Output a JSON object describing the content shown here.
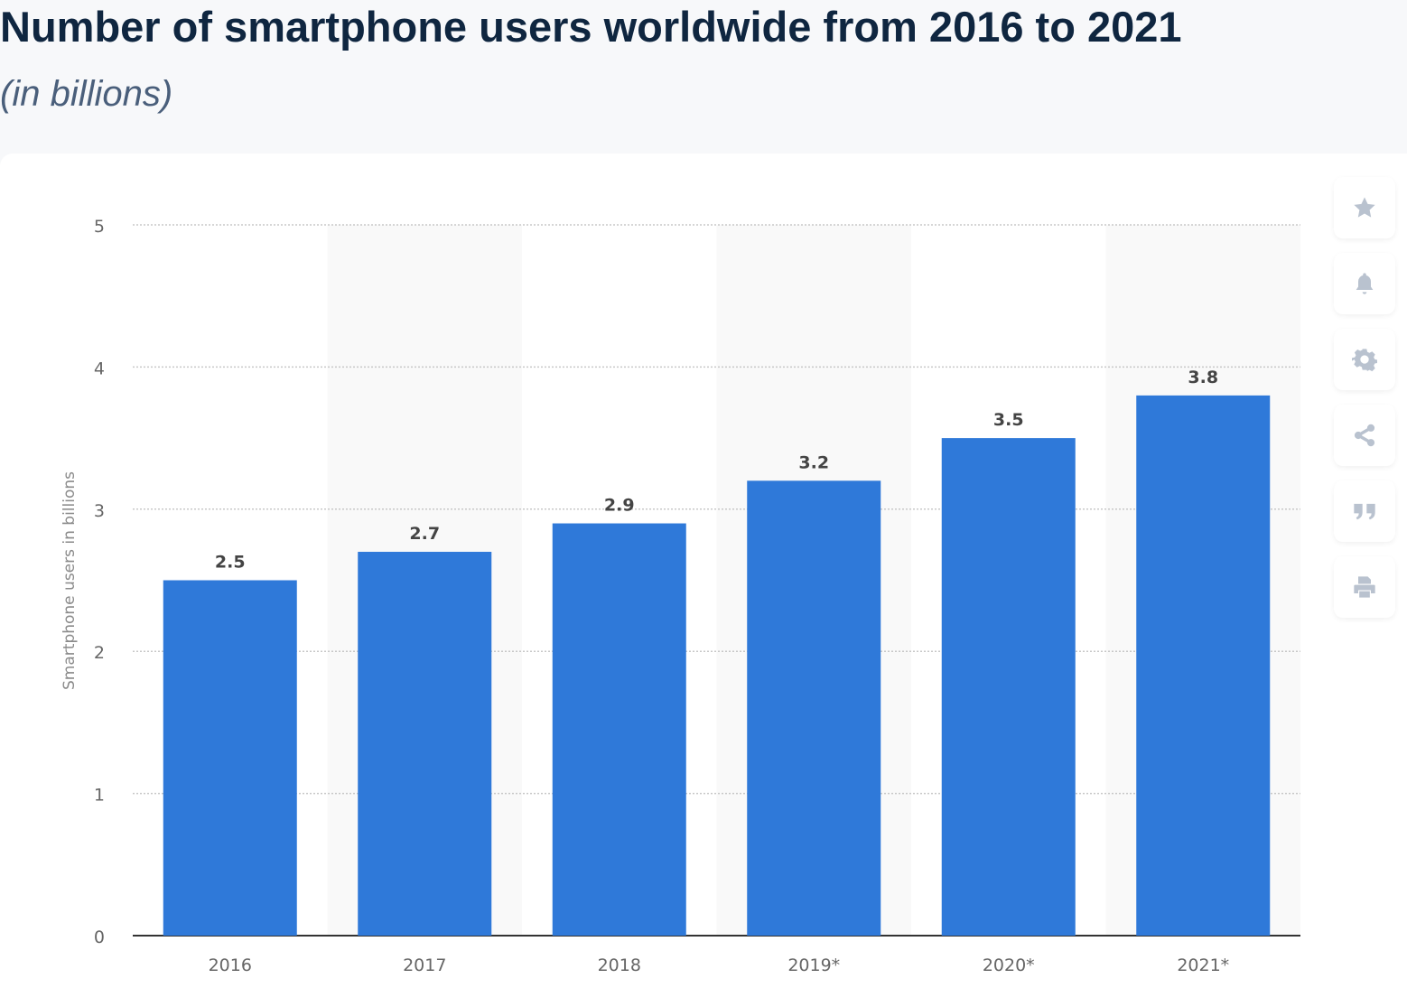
{
  "header": {
    "title": "Number of smartphone users worldwide from 2016 to 2021",
    "subtitle": "(in billions)"
  },
  "toolbar": {
    "icons": [
      "star-icon",
      "bell-icon",
      "gear-icon",
      "share-icon",
      "quote-icon",
      "print-icon"
    ]
  },
  "chart_data": {
    "type": "bar",
    "title": "Number of smartphone users worldwide from 2016 to 2021",
    "subtitle": "(in billions)",
    "categories": [
      "2016",
      "2017",
      "2018",
      "2019*",
      "2020*",
      "2021*"
    ],
    "values": [
      2.5,
      2.7,
      2.9,
      3.2,
      3.5,
      3.8
    ],
    "data_labels": [
      "2.5",
      "2.7",
      "2.9",
      "3.2",
      "3.5",
      "3.8"
    ],
    "xlabel": "",
    "ylabel": "Smartphone users in billions",
    "ylim": [
      0,
      5
    ],
    "yticks": [
      "0",
      "1",
      "2",
      "3",
      "4",
      "5"
    ],
    "grid": true,
    "bar_color": "#2f79d9"
  }
}
